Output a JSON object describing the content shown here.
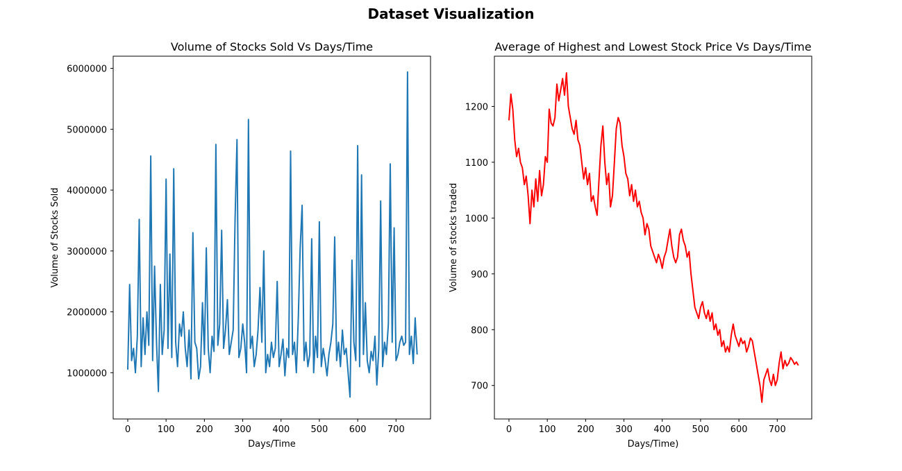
{
  "figure_title": "Dataset Visualization",
  "chart_data": [
    {
      "type": "line",
      "title": "Volume of Stocks Sold Vs Days/Time",
      "xlabel": "Days/Time",
      "ylabel": "Volume of Stocks Sold",
      "xlim": [
        -38,
        790
      ],
      "ylim": [
        240000,
        6200000
      ],
      "xticks": [
        0,
        100,
        200,
        300,
        400,
        500,
        600,
        700
      ],
      "yticks": [
        1000000,
        2000000,
        3000000,
        4000000,
        5000000,
        6000000
      ],
      "ytick_labels": [
        "1000000",
        "2000000",
        "3000000",
        "4000000",
        "5000000",
        "6000000"
      ],
      "grid": false,
      "series": [
        {
          "color": "#1f77b4",
          "x": [
            0,
            5,
            10,
            15,
            20,
            25,
            30,
            35,
            40,
            45,
            50,
            55,
            60,
            65,
            70,
            75,
            80,
            85,
            90,
            95,
            100,
            105,
            110,
            115,
            120,
            125,
            130,
            135,
            140,
            145,
            150,
            155,
            160,
            165,
            170,
            175,
            180,
            185,
            190,
            195,
            200,
            205,
            210,
            215,
            220,
            225,
            230,
            235,
            240,
            245,
            250,
            255,
            260,
            265,
            270,
            275,
            280,
            285,
            290,
            295,
            300,
            305,
            310,
            315,
            320,
            325,
            330,
            335,
            340,
            345,
            350,
            355,
            360,
            365,
            370,
            375,
            380,
            385,
            390,
            395,
            400,
            405,
            410,
            415,
            420,
            425,
            430,
            435,
            440,
            445,
            450,
            455,
            460,
            465,
            470,
            475,
            480,
            485,
            490,
            495,
            500,
            505,
            510,
            515,
            520,
            525,
            530,
            535,
            540,
            545,
            550,
            555,
            560,
            565,
            570,
            575,
            580,
            585,
            590,
            595,
            600,
            605,
            610,
            615,
            620,
            625,
            630,
            635,
            640,
            645,
            650,
            655,
            660,
            665,
            670,
            675,
            680,
            685,
            690,
            695,
            700,
            705,
            710,
            715,
            720,
            725,
            730,
            735,
            740,
            745,
            750,
            755
          ],
          "values": [
            1050000,
            2450000,
            1200000,
            1400000,
            1000000,
            1600000,
            3520000,
            1100000,
            1900000,
            1300000,
            2000000,
            1450000,
            4560000,
            1200000,
            2750000,
            1500000,
            690000,
            2450000,
            1300000,
            1700000,
            4180000,
            1400000,
            2950000,
            1250000,
            4350000,
            1500000,
            1100000,
            1800000,
            1600000,
            2000000,
            1400000,
            1100000,
            1700000,
            900000,
            3300000,
            1500000,
            1400000,
            900000,
            1100000,
            2150000,
            1300000,
            3050000,
            1400000,
            1000000,
            1600000,
            1350000,
            4750000,
            1450000,
            1800000,
            3340000,
            1400000,
            1700000,
            2200000,
            1300000,
            1500000,
            1700000,
            3500000,
            4830000,
            1250000,
            1400000,
            1800000,
            1500000,
            1000000,
            5160000,
            1400000,
            1600000,
            1100000,
            1300000,
            1700000,
            2400000,
            1500000,
            3000000,
            1000000,
            1300000,
            1100000,
            1500000,
            1250000,
            1400000,
            2500000,
            1100000,
            1300000,
            1550000,
            950000,
            1400000,
            1250000,
            4640000,
            1300000,
            1500000,
            1000000,
            1900000,
            3050000,
            3750000,
            1200000,
            1500000,
            1100000,
            1300000,
            3200000,
            1000000,
            1600000,
            1250000,
            3480000,
            1100000,
            1400000,
            1200000,
            950000,
            1300000,
            1500000,
            1800000,
            3230000,
            1200000,
            1500000,
            1100000,
            1700000,
            1300000,
            1400000,
            1000000,
            600000,
            2850000,
            1500000,
            1200000,
            4730000,
            1100000,
            4250000,
            1300000,
            2150000,
            1200000,
            1000000,
            1350000,
            1200000,
            1600000,
            800000,
            1400000,
            3820000,
            1100000,
            1500000,
            1300000,
            1800000,
            4430000,
            1500000,
            3380000,
            1200000,
            1300000,
            1500000,
            1600000,
            1450000,
            1500000,
            5940000,
            1300000,
            1600000,
            1150000,
            1900000,
            1300000
          ]
        }
      ]
    },
    {
      "type": "line",
      "title": "Average of Highest and Lowest Stock Price Vs Days/Time",
      "xlabel": "Days/Time)",
      "ylabel": "Volume of stocks traded",
      "xlim": [
        -38,
        790
      ],
      "ylim": [
        640,
        1290
      ],
      "xticks": [
        0,
        100,
        200,
        300,
        400,
        500,
        600,
        700
      ],
      "yticks": [
        700,
        800,
        900,
        1000,
        1100,
        1200
      ],
      "grid": false,
      "series": [
        {
          "color": "#ff0000",
          "x": [
            0,
            5,
            10,
            15,
            20,
            25,
            30,
            35,
            40,
            45,
            50,
            55,
            60,
            65,
            70,
            75,
            80,
            85,
            90,
            95,
            100,
            105,
            110,
            115,
            120,
            125,
            130,
            135,
            140,
            145,
            150,
            155,
            160,
            165,
            170,
            175,
            180,
            185,
            190,
            195,
            200,
            205,
            210,
            215,
            220,
            225,
            230,
            235,
            240,
            245,
            250,
            255,
            260,
            265,
            270,
            275,
            280,
            285,
            290,
            295,
            300,
            305,
            310,
            315,
            320,
            325,
            330,
            335,
            340,
            345,
            350,
            355,
            360,
            365,
            370,
            375,
            380,
            385,
            390,
            395,
            400,
            405,
            410,
            415,
            420,
            425,
            430,
            435,
            440,
            445,
            450,
            455,
            460,
            465,
            470,
            475,
            480,
            485,
            490,
            495,
            500,
            505,
            510,
            515,
            520,
            525,
            530,
            535,
            540,
            545,
            550,
            555,
            560,
            565,
            570,
            575,
            580,
            585,
            590,
            595,
            600,
            605,
            610,
            615,
            620,
            625,
            630,
            635,
            640,
            645,
            650,
            655,
            660,
            665,
            670,
            675,
            680,
            685,
            690,
            695,
            700,
            705,
            710,
            715,
            720,
            725,
            730,
            735,
            740,
            745,
            750,
            755
          ],
          "values": [
            1175,
            1222,
            1195,
            1140,
            1110,
            1125,
            1100,
            1090,
            1060,
            1075,
            1040,
            990,
            1050,
            1020,
            1070,
            1030,
            1085,
            1040,
            1060,
            1110,
            1100,
            1195,
            1170,
            1165,
            1180,
            1240,
            1210,
            1230,
            1250,
            1220,
            1260,
            1200,
            1180,
            1160,
            1150,
            1175,
            1140,
            1130,
            1100,
            1070,
            1090,
            1060,
            1080,
            1030,
            1040,
            1020,
            1005,
            1070,
            1130,
            1165,
            1100,
            1060,
            1080,
            1020,
            1040,
            1100,
            1160,
            1180,
            1170,
            1130,
            1110,
            1080,
            1070,
            1040,
            1060,
            1030,
            1050,
            1020,
            1030,
            1010,
            1000,
            970,
            990,
            980,
            950,
            940,
            930,
            920,
            935,
            925,
            910,
            930,
            940,
            960,
            980,
            950,
            930,
            920,
            930,
            970,
            980,
            960,
            950,
            930,
            940,
            900,
            870,
            840,
            830,
            820,
            840,
            850,
            830,
            820,
            835,
            815,
            830,
            800,
            810,
            790,
            800,
            770,
            780,
            760,
            770,
            760,
            790,
            810,
            790,
            780,
            770,
            785,
            775,
            780,
            760,
            770,
            785,
            780,
            760,
            740,
            720,
            700,
            670,
            710,
            720,
            730,
            710,
            700,
            720,
            700,
            710,
            740,
            760,
            730,
            745,
            735,
            740,
            750,
            745,
            738,
            742,
            736
          ]
        }
      ]
    }
  ]
}
